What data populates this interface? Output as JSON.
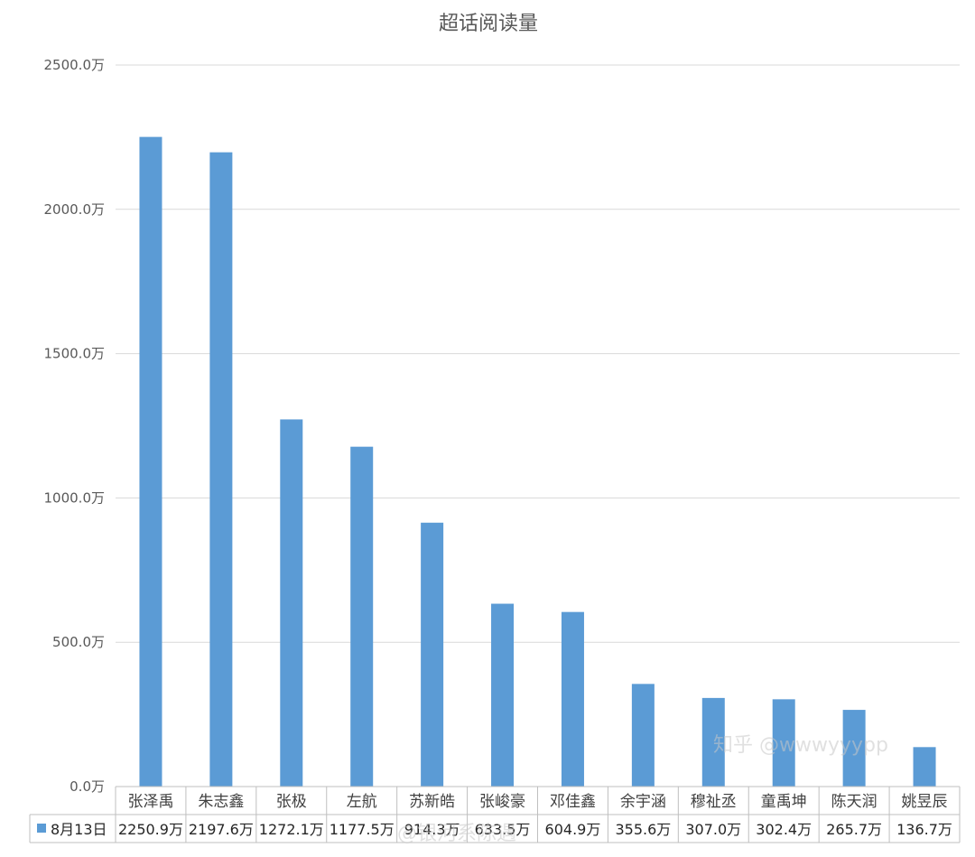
{
  "chart_data": {
    "type": "bar",
    "title": "超话阅读量",
    "categories": [
      "张泽禹",
      "朱志鑫",
      "张极",
      "左航",
      "苏新皓",
      "张峻豪",
      "邓佳鑫",
      "余宇涵",
      "穆祉丞",
      "童禹坤",
      "陈天润",
      "姚昱辰"
    ],
    "series": [
      {
        "name": "8月13日",
        "values": [
          2250.9,
          2197.6,
          1272.1,
          1177.5,
          914.3,
          633.5,
          604.9,
          355.6,
          307.0,
          302.4,
          265.7,
          136.7
        ],
        "labels": [
          "2250.9万",
          "2197.6万",
          "1272.1万",
          "1177.5万",
          "914.3万",
          "633.5万",
          "604.9万",
          "355.6万",
          "307.0万",
          "302.4万",
          "265.7万",
          "136.7万"
        ]
      }
    ],
    "y_ticks": [
      "0.0万",
      "500.0万",
      "1000.0万",
      "1500.0万",
      "2000.0万",
      "2500.0万"
    ],
    "ylim": [
      0,
      2500
    ],
    "grid": true,
    "data_table": true,
    "color": "#5b9bd5"
  },
  "watermark": {
    "text1": "知乎 @wwwyyypp",
    "text2": "@银河系陈遇"
  }
}
